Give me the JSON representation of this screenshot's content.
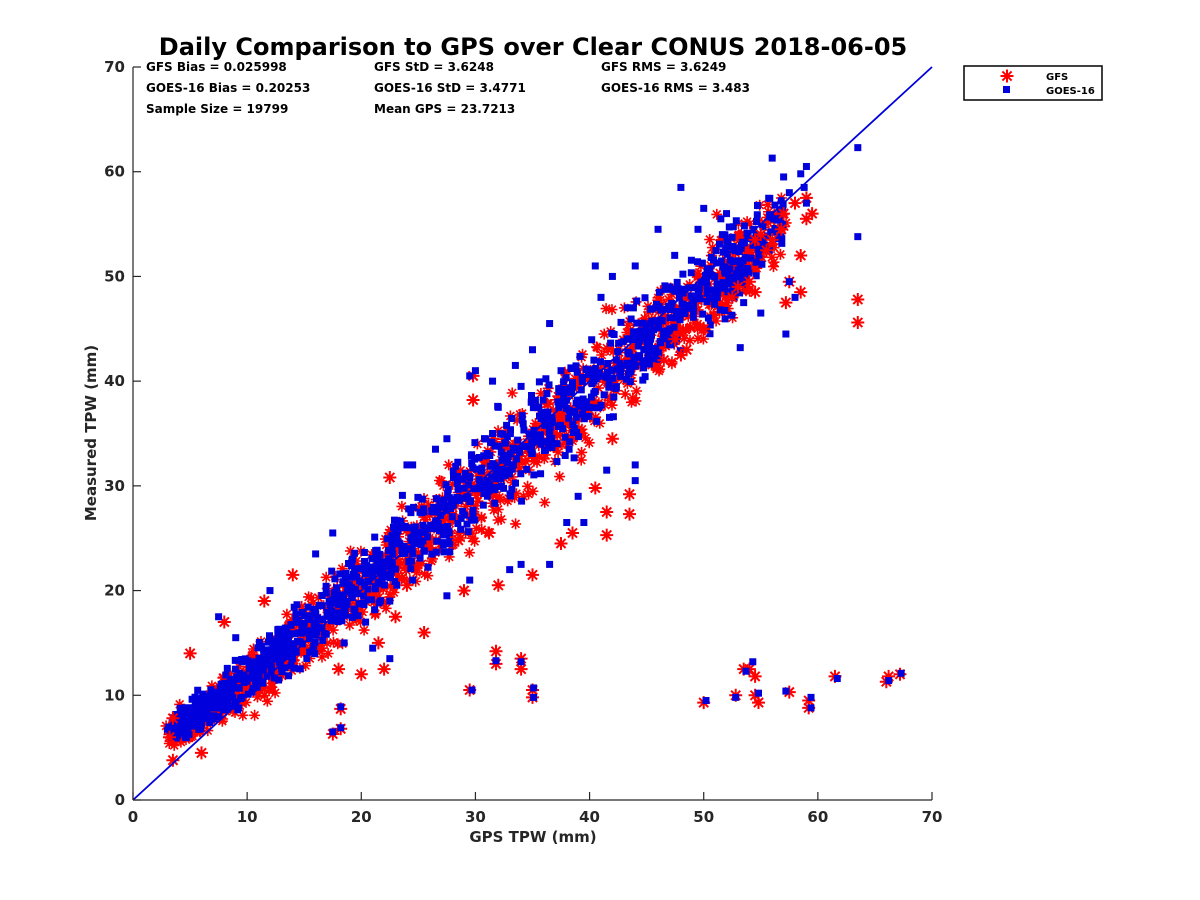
{
  "chart_data": {
    "type": "scatter",
    "title": "Daily Comparison to GPS over Clear CONUS 2018-06-05",
    "xlabel": "GPS TPW (mm)",
    "ylabel": "Measured TPW (mm)",
    "xlim": [
      0,
      70
    ],
    "ylim": [
      0,
      70
    ],
    "xticks": [
      "0",
      "10",
      "20",
      "30",
      "40",
      "50",
      "60",
      "70"
    ],
    "yticks": [
      "0",
      "10",
      "20",
      "30",
      "40",
      "50",
      "60",
      "70"
    ],
    "grid": false,
    "legend_position": "outside-top-right",
    "stats": [
      [
        "GFS Bias = 0.025998",
        "GFS StD = 3.6248",
        "GFS RMS = 3.6249"
      ],
      [
        "GOES-16 Bias = 0.20253",
        "GOES-16 StD = 3.4771",
        "GOES-16 RMS = 3.483"
      ],
      [
        "Sample Size = 19799",
        "Mean GPS = 23.7213"
      ]
    ],
    "reference_line": {
      "label": "1:1",
      "x": [
        0,
        70
      ],
      "y": [
        0,
        70
      ],
      "color": "#0000dd"
    },
    "point_cloud": {
      "approx_points_per_series": 19799,
      "note": "dense cloud along 1:1 line; representative band shown",
      "band_centers": [
        [
          3.5,
          6.0
        ],
        [
          8,
          9.5
        ],
        [
          15,
          15.5
        ],
        [
          22,
          22
        ],
        [
          30,
          29.5
        ],
        [
          38,
          36.5
        ],
        [
          45,
          44
        ],
        [
          52,
          50
        ],
        [
          57,
          55
        ]
      ],
      "band_halfwidth": [
        1.0,
        1.8,
        2.5,
        3.0,
        3.5,
        3.8,
        4.0,
        3.5,
        2.5
      ]
    },
    "series": [
      {
        "name": "GFS",
        "marker": "asterisk",
        "color": "#ff0000",
        "outliers": [
          [
            29.8,
            40.5
          ],
          [
            29.8,
            38.2
          ],
          [
            22.5,
            30.8
          ],
          [
            28.5,
            24.8
          ],
          [
            31.2,
            25.5
          ],
          [
            29.0,
            20.0
          ],
          [
            32.0,
            20.5
          ],
          [
            35.0,
            21.5
          ],
          [
            37.5,
            24.5
          ],
          [
            38.5,
            25.5
          ],
          [
            41.5,
            25.3
          ],
          [
            41.5,
            27.5
          ],
          [
            43.5,
            27.3
          ],
          [
            43.5,
            29.2
          ],
          [
            40.5,
            29.8
          ],
          [
            42.0,
            34.5
          ],
          [
            24.0,
            20.5
          ],
          [
            23.0,
            17.5
          ],
          [
            25.5,
            16.0
          ],
          [
            21.5,
            15.0
          ],
          [
            18.0,
            12.5
          ],
          [
            20.0,
            12.0
          ],
          [
            22.0,
            12.5
          ],
          [
            17.5,
            6.3
          ],
          [
            18.2,
            6.8
          ],
          [
            18.2,
            8.7
          ],
          [
            3.2,
            6.0
          ],
          [
            3.5,
            7.8
          ],
          [
            3.5,
            3.8
          ],
          [
            6.0,
            4.5
          ],
          [
            5.0,
            14.0
          ],
          [
            8.0,
            17.0
          ],
          [
            11.5,
            19.0
          ],
          [
            14.0,
            21.5
          ],
          [
            29.5,
            10.5
          ],
          [
            31.8,
            14.2
          ],
          [
            31.8,
            13.0
          ],
          [
            34.0,
            13.5
          ],
          [
            34.0,
            12.5
          ],
          [
            35.0,
            9.8
          ],
          [
            35.0,
            10.5
          ],
          [
            50.0,
            9.3
          ],
          [
            52.8,
            10.0
          ],
          [
            53.5,
            12.5
          ],
          [
            54.0,
            12.5
          ],
          [
            54.5,
            11.8
          ],
          [
            54.5,
            10.0
          ],
          [
            54.8,
            9.3
          ],
          [
            57.5,
            10.3
          ],
          [
            59.2,
            8.8
          ],
          [
            59.2,
            9.5
          ],
          [
            61.5,
            11.8
          ],
          [
            66.0,
            11.3
          ],
          [
            66.2,
            11.8
          ],
          [
            67.2,
            12.0
          ],
          [
            63.5,
            47.8
          ],
          [
            63.5,
            45.6
          ],
          [
            58.5,
            52.0
          ],
          [
            58.5,
            48.5
          ],
          [
            57.5,
            49.5
          ],
          [
            57.2,
            47.5
          ],
          [
            59.0,
            57.5
          ],
          [
            59.0,
            55.5
          ],
          [
            59.5,
            56.0
          ],
          [
            58.0,
            57.0
          ],
          [
            57.0,
            56.0
          ],
          [
            55.0,
            54.0
          ],
          [
            54.5,
            53.5
          ],
          [
            56.0,
            53.5
          ],
          [
            56.8,
            54.5
          ],
          [
            55.5,
            52.5
          ],
          [
            54.0,
            49.5
          ],
          [
            54.5,
            48.5
          ],
          [
            53.0,
            49.0
          ],
          [
            52.5,
            48.0
          ],
          [
            47.5,
            44.0
          ],
          [
            48.5,
            43.0
          ],
          [
            50.0,
            45.0
          ],
          [
            46.5,
            42.0
          ],
          [
            48.0,
            42.5
          ]
        ]
      },
      {
        "name": "GOES-16",
        "marker": "square",
        "color": "#0000dd",
        "outliers": [
          [
            63.5,
            62.3
          ],
          [
            63.5,
            53.8
          ],
          [
            57.2,
            44.5
          ],
          [
            58.0,
            48.0
          ],
          [
            57.5,
            49.5
          ],
          [
            56.0,
            61.3
          ],
          [
            57.0,
            59.5
          ],
          [
            58.5,
            59.8
          ],
          [
            59.0,
            60.5
          ],
          [
            59.0,
            57.0
          ],
          [
            58.8,
            58.5
          ],
          [
            57.5,
            58.0
          ],
          [
            53.5,
            47.5
          ],
          [
            55.0,
            46.5
          ],
          [
            53.2,
            43.2
          ],
          [
            52.0,
            56.0
          ],
          [
            51.5,
            55.5
          ],
          [
            48.0,
            58.5
          ],
          [
            50.0,
            56.5
          ],
          [
            49.5,
            54.5
          ],
          [
            47.0,
            49.0
          ],
          [
            46.0,
            54.5
          ],
          [
            44.0,
            51.0
          ],
          [
            42.0,
            50.0
          ],
          [
            41.0,
            48.0
          ],
          [
            40.5,
            51.0
          ],
          [
            36.5,
            45.5
          ],
          [
            35.0,
            43.0
          ],
          [
            37.5,
            41.0
          ],
          [
            33.5,
            41.5
          ],
          [
            30.0,
            41.0
          ],
          [
            29.5,
            40.5
          ],
          [
            31.5,
            40.0
          ],
          [
            34.0,
            39.5
          ],
          [
            32.0,
            37.5
          ],
          [
            31.5,
            35.0
          ],
          [
            27.5,
            34.5
          ],
          [
            24.5,
            32.0
          ],
          [
            26.5,
            33.5
          ],
          [
            44.0,
            32.0
          ],
          [
            44.0,
            30.5
          ],
          [
            41.5,
            31.5
          ],
          [
            39.0,
            29.0
          ],
          [
            39.5,
            26.5
          ],
          [
            38.0,
            26.5
          ],
          [
            36.5,
            22.5
          ],
          [
            34.0,
            22.5
          ],
          [
            33.0,
            22.0
          ],
          [
            29.5,
            21.0
          ],
          [
            27.5,
            19.5
          ],
          [
            24.5,
            21.0
          ],
          [
            22.5,
            19.0
          ],
          [
            21.0,
            14.5
          ],
          [
            22.5,
            13.5
          ],
          [
            18.5,
            15.0
          ],
          [
            18.2,
            8.9
          ],
          [
            18.2,
            6.9
          ],
          [
            17.5,
            6.5
          ],
          [
            29.7,
            10.5
          ],
          [
            31.8,
            13.3
          ],
          [
            34.0,
            13.2
          ],
          [
            35.1,
            10.7
          ],
          [
            35.1,
            9.8
          ],
          [
            50.2,
            9.5
          ],
          [
            52.8,
            9.8
          ],
          [
            53.7,
            12.3
          ],
          [
            54.3,
            13.2
          ],
          [
            54.8,
            10.2
          ],
          [
            57.2,
            10.4
          ],
          [
            59.4,
            9.8
          ],
          [
            59.4,
            8.8
          ],
          [
            61.7,
            11.6
          ],
          [
            66.2,
            11.4
          ],
          [
            67.3,
            12.1
          ],
          [
            7.5,
            17.5
          ],
          [
            9.0,
            15.5
          ],
          [
            12.0,
            20.0
          ],
          [
            17.5,
            25.5
          ],
          [
            16.0,
            23.5
          ],
          [
            24.0,
            32.0
          ]
        ]
      }
    ]
  }
}
